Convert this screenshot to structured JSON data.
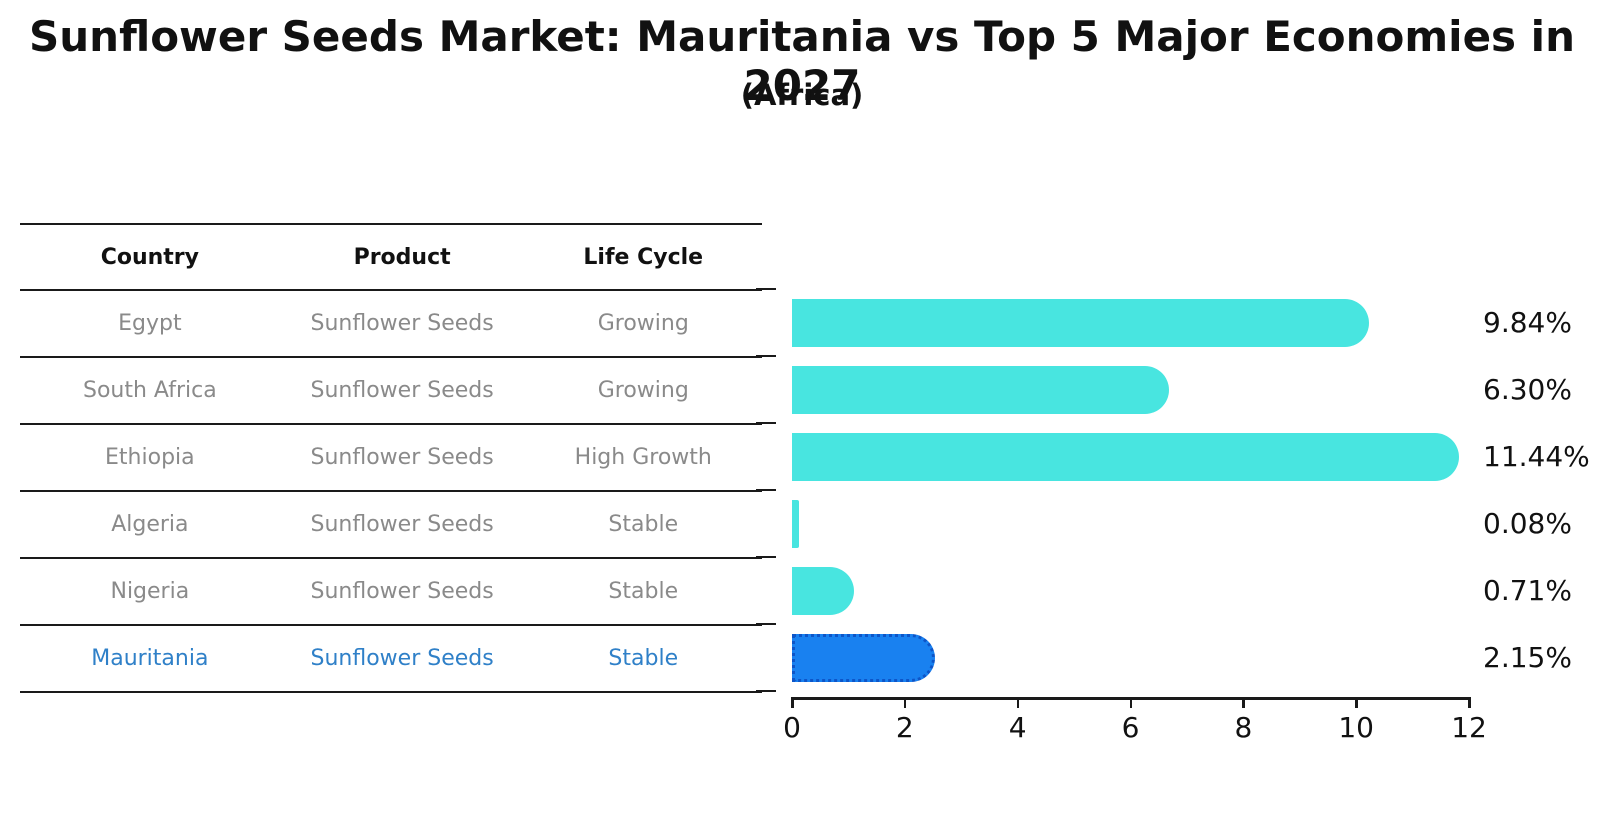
{
  "title": "Sunflower Seeds Market: Mauritania vs Top 5 Major Economies in 2027",
  "subtitle": "(Africa)",
  "table": {
    "headers": {
      "country": "Country",
      "product": "Product",
      "life_cycle": "Life Cycle"
    },
    "rows": [
      {
        "country": "Egypt",
        "product": "Sunflower Seeds",
        "life_cycle": "Growing",
        "highlighted": false
      },
      {
        "country": "South Africa",
        "product": "Sunflower Seeds",
        "life_cycle": "Growing",
        "highlighted": false
      },
      {
        "country": "Ethiopia",
        "product": "Sunflower Seeds",
        "life_cycle": "High Growth",
        "highlighted": false
      },
      {
        "country": "Algeria",
        "product": "Sunflower Seeds",
        "life_cycle": "Stable",
        "highlighted": false
      },
      {
        "country": "Nigeria",
        "product": "Sunflower Seeds",
        "life_cycle": "Stable",
        "highlighted": false
      },
      {
        "country": "Mauritania",
        "product": "Sunflower Seeds",
        "life_cycle": "Stable",
        "highlighted": true
      }
    ]
  },
  "chart_data": {
    "type": "bar",
    "orientation": "horizontal",
    "categories": [
      "Egypt",
      "South Africa",
      "Ethiopia",
      "Algeria",
      "Nigeria",
      "Mauritania"
    ],
    "values": [
      9.84,
      6.3,
      11.44,
      0.08,
      0.71,
      2.15
    ],
    "value_labels": [
      "9.84%",
      "6.30%",
      "11.44%",
      "0.08%",
      "0.71%",
      "2.15%"
    ],
    "highlight_index": 5,
    "xlim": [
      0,
      12
    ],
    "x_ticks": [
      "0",
      "2",
      "4",
      "6",
      "8",
      "10",
      "12"
    ],
    "grid": false,
    "legend": "none",
    "bar_color": "#48e5e0",
    "highlight_bar_color": "#1981f0",
    "highlight_edge_color": "#0d55c8",
    "highlight_text_color": "#2f80c8",
    "label_color": "#111111",
    "muted_text_color": "#8a8a8a"
  }
}
